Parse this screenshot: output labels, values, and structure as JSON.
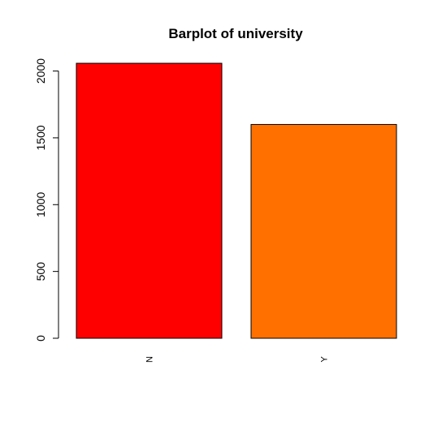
{
  "chart_data": {
    "type": "bar",
    "title": "Barplot of university",
    "xlabel": "",
    "ylabel": "",
    "categories": [
      "N",
      "Y"
    ],
    "values": [
      2058,
      1600
    ],
    "colors": [
      "#ff0000",
      "#ff7000"
    ],
    "border_color": "#000000",
    "ylim": [
      0,
      2058
    ],
    "yticks": [
      0,
      500,
      1000,
      1500,
      2000
    ],
    "ytick_labels": [
      "0",
      "500",
      "1000",
      "1500",
      "2000"
    ],
    "grid": false,
    "legend": "none"
  }
}
